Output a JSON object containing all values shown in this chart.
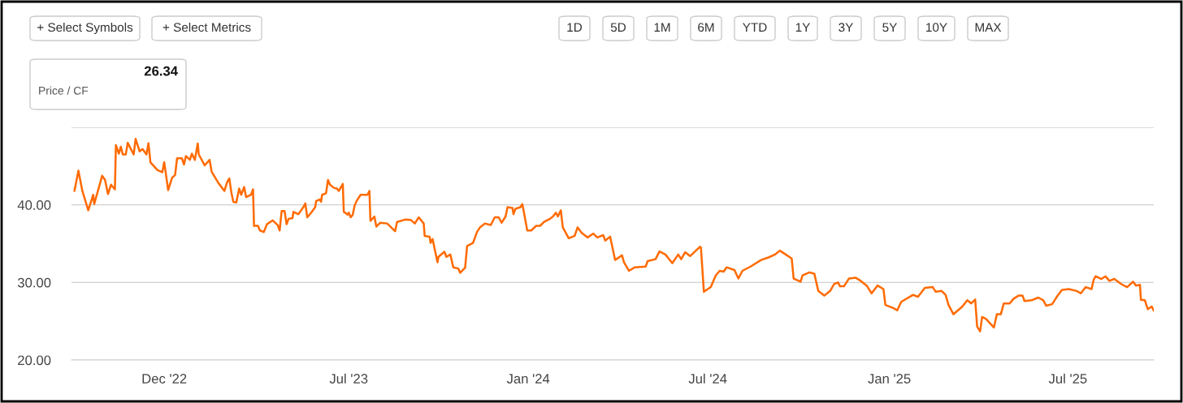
{
  "chart_data": {
    "type": "line",
    "annotations": [
      "+ Select Symbols",
      "+ Select Metrics",
      "1D",
      "5D",
      "1M",
      "6M",
      "YTD",
      "1Y",
      "3Y",
      "5Y",
      "10Y",
      "MAX",
      "26.34",
      "Price / CF"
    ],
    "xlim": [
      "2022-09-25",
      "2025-09-26"
    ],
    "xticks": [
      {
        "value": "2022-12-28",
        "label": "Dec '22"
      },
      {
        "value": "2023-07-03",
        "label": "Jul '23"
      },
      {
        "value": "2024-01-01",
        "label": "Jan '24"
      },
      {
        "value": "2024-07-01",
        "label": "Jul '24"
      },
      {
        "value": "2025-01-01",
        "label": "Jan '25"
      },
      {
        "value": "2025-07-01",
        "label": "Jul '25"
      }
    ],
    "ylim": [
      20,
      50
    ],
    "yticks": [
      {
        "value": 20,
        "label": "20.00"
      },
      {
        "value": 30,
        "label": "30.00"
      },
      {
        "value": 40,
        "label": "40.00"
      },
      {
        "value": 50,
        "label": null
      }
    ],
    "grid": "y",
    "legend": false,
    "marker": "none",
    "line_style": "solid",
    "series": [
      {
        "color": "#ff6a00",
        "x": [
          "2022-09-28",
          "2022-10-02",
          "2022-10-06",
          "2022-10-12",
          "2022-10-17",
          "2022-10-18",
          "2022-10-24",
          "2022-10-26",
          "2022-10-29",
          "2022-11-01",
          "2022-11-04",
          "2022-11-08",
          "2022-11-09",
          "2022-11-12",
          "2022-11-14",
          "2022-11-16",
          "2022-11-19",
          "2022-11-21",
          "2022-11-27",
          "2022-11-29",
          "2022-12-03",
          "2022-12-06",
          "2022-12-10",
          "2022-12-12",
          "2022-12-14",
          "2022-12-21",
          "2022-12-26",
          "2022-12-28",
          "2023-01-01",
          "2023-01-05",
          "2023-01-08",
          "2023-01-10",
          "2023-01-15",
          "2023-01-17",
          "2023-01-19",
          "2023-01-23",
          "2023-01-25",
          "2023-01-28",
          "2023-01-31",
          "2023-02-01",
          "2023-02-07",
          "2023-02-12",
          "2023-02-14",
          "2023-02-21",
          "2023-02-27",
          "2023-03-02",
          "2023-03-04",
          "2023-03-06",
          "2023-03-08",
          "2023-03-11",
          "2023-03-14",
          "2023-03-16",
          "2023-03-19",
          "2023-03-21",
          "2023-03-26",
          "2023-03-28",
          "2023-03-29",
          "2023-04-02",
          "2023-04-04",
          "2023-04-08",
          "2023-04-11",
          "2023-04-17",
          "2023-04-22",
          "2023-04-24",
          "2023-04-26",
          "2023-04-29",
          "2023-05-01",
          "2023-05-03",
          "2023-05-07",
          "2023-05-08",
          "2023-05-13",
          "2023-05-18",
          "2023-05-20",
          "2023-05-22",
          "2023-05-26",
          "2023-05-30",
          "2023-05-31",
          "2023-06-04",
          "2023-06-05",
          "2023-06-06",
          "2023-06-10",
          "2023-06-12",
          "2023-06-14",
          "2023-06-18",
          "2023-06-21",
          "2023-06-23",
          "2023-06-27",
          "2023-06-28",
          "2023-07-02",
          "2023-07-03",
          "2023-07-05",
          "2023-07-07",
          "2023-07-09",
          "2023-07-11",
          "2023-07-15",
          "2023-07-22",
          "2023-07-24",
          "2023-07-25",
          "2023-07-29",
          "2023-07-31",
          "2023-08-04",
          "2023-08-11",
          "2023-08-19",
          "2023-08-21",
          "2023-08-29",
          "2023-09-04",
          "2023-09-08",
          "2023-09-12",
          "2023-09-17",
          "2023-09-18",
          "2023-09-23",
          "2023-09-24",
          "2023-09-26",
          "2023-10-01",
          "2023-10-02",
          "2023-10-08",
          "2023-10-10",
          "2023-10-14",
          "2023-10-17",
          "2023-10-22",
          "2023-10-24",
          "2023-10-29",
          "2023-10-31",
          "2023-11-06",
          "2023-11-10",
          "2023-11-13",
          "2023-11-18",
          "2023-11-24",
          "2023-11-28",
          "2023-12-02",
          "2023-12-05",
          "2023-12-09",
          "2023-12-11",
          "2023-12-16",
          "2023-12-17",
          "2023-12-19",
          "2023-12-24",
          "2023-12-26",
          "2023-12-31",
          "2024-01-04",
          "2024-01-09",
          "2024-01-13",
          "2024-01-17",
          "2024-01-23",
          "2024-01-26",
          "2024-01-29",
          "2024-01-31",
          "2024-02-03",
          "2024-02-05",
          "2024-02-11",
          "2024-02-17",
          "2024-02-20",
          "2024-02-24",
          "2024-03-01",
          "2024-03-07",
          "2024-03-11",
          "2024-03-17",
          "2024-03-19",
          "2024-03-24",
          "2024-03-29",
          "2024-04-05",
          "2024-04-07",
          "2024-04-12",
          "2024-04-18",
          "2024-04-29",
          "2024-05-01",
          "2024-05-09",
          "2024-05-13",
          "2024-05-19",
          "2024-05-26",
          "2024-06-01",
          "2024-06-04",
          "2024-06-08",
          "2024-06-13",
          "2024-06-23",
          "2024-06-24",
          "2024-06-27",
          "2024-07-04",
          "2024-07-09",
          "2024-07-13",
          "2024-07-17",
          "2024-07-20",
          "2024-07-28",
          "2024-08-01",
          "2024-08-05",
          "2024-08-14",
          "2024-08-24",
          "2024-09-01",
          "2024-09-07",
          "2024-09-12",
          "2024-09-18",
          "2024-09-24",
          "2024-09-26",
          "2024-10-03",
          "2024-10-05",
          "2024-10-12",
          "2024-10-17",
          "2024-10-21",
          "2024-10-27",
          "2024-11-02",
          "2024-11-06",
          "2024-11-10",
          "2024-11-12",
          "2024-11-16",
          "2024-11-21",
          "2024-11-28",
          "2024-12-03",
          "2024-12-09",
          "2024-12-14",
          "2024-12-20",
          "2024-12-26",
          "2024-12-28",
          "2025-01-05",
          "2025-01-09",
          "2025-01-13",
          "2025-01-25",
          "2025-01-30",
          "2025-02-06",
          "2025-02-14",
          "2025-02-17",
          "2025-02-23",
          "2025-02-27",
          "2025-03-02",
          "2025-03-07",
          "2025-03-16",
          "2025-03-21",
          "2025-03-25",
          "2025-03-29",
          "2025-03-31",
          "2025-04-03",
          "2025-04-05",
          "2025-04-09",
          "2025-04-17",
          "2025-04-20",
          "2025-04-24",
          "2025-04-27",
          "2025-05-03",
          "2025-05-07",
          "2025-05-12",
          "2025-05-16",
          "2025-05-18",
          "2025-05-25",
          "2025-06-01",
          "2025-06-06",
          "2025-06-09",
          "2025-06-15",
          "2025-06-20",
          "2025-06-25",
          "2025-07-02",
          "2025-07-10",
          "2025-07-14",
          "2025-07-19",
          "2025-07-25",
          "2025-07-27",
          "2025-07-29",
          "2025-08-04",
          "2025-08-08",
          "2025-08-12",
          "2025-08-17",
          "2025-08-24",
          "2025-08-30",
          "2025-09-05",
          "2025-09-08",
          "2025-09-12",
          "2025-09-13",
          "2025-09-17",
          "2025-09-20",
          "2025-09-24",
          "2025-09-26"
        ],
        "values": [
          41.8,
          44.4,
          41.8,
          39.3,
          41.3,
          40.1,
          42.8,
          43.75,
          43.2,
          41.4,
          42.6,
          42.0,
          47.7,
          46.6,
          47.5,
          46.5,
          46.5,
          48.0,
          46.5,
          48.5,
          46.9,
          47.2,
          46.5,
          47.95,
          45.5,
          44.5,
          44.2,
          45.5,
          41.9,
          43.5,
          43.85,
          46.0,
          46.0,
          45.2,
          46.3,
          45.8,
          46.6,
          45.8,
          47.9,
          46.5,
          45.1,
          45.8,
          44.3,
          42.8,
          41.8,
          43.0,
          43.4,
          41.6,
          40.4,
          40.3,
          42.1,
          41.3,
          42.3,
          41.0,
          41.3,
          42.0,
          37.3,
          37.3,
          36.7,
          36.5,
          37.5,
          38.0,
          37.4,
          36.7,
          39.2,
          39.2,
          37.5,
          38.2,
          38.3,
          39.1,
          38.8,
          39.7,
          40.2,
          38.4,
          39.0,
          39.7,
          40.5,
          40.7,
          40.4,
          41.3,
          41.5,
          43.2,
          42.6,
          42.2,
          42.1,
          41.8,
          42.7,
          39.1,
          38.75,
          39.0,
          38.4,
          38.7,
          39.9,
          40.5,
          41.3,
          41.3,
          41.8,
          37.95,
          38.5,
          37.2,
          37.7,
          37.6,
          36.6,
          37.8,
          38.1,
          38.05,
          37.6,
          38.4,
          37.6,
          36.0,
          35.9,
          35.1,
          35.6,
          32.6,
          33.3,
          33.95,
          33.3,
          33.6,
          31.95,
          31.8,
          31.25,
          31.9,
          34.7,
          35.1,
          36.5,
          37.1,
          37.6,
          37.4,
          38.4,
          38.4,
          37.7,
          38.5,
          39.7,
          39.6,
          38.8,
          39.5,
          39.7,
          40.1,
          36.7,
          36.7,
          37.3,
          37.3,
          37.8,
          38.2,
          38.5,
          39.0,
          38.5,
          39.3,
          37.1,
          35.7,
          36.0,
          37.1,
          36.4,
          35.8,
          36.3,
          35.8,
          36.1,
          35.4,
          35.9,
          32.9,
          33.5,
          32.6,
          31.5,
          31.95,
          32.05,
          32.75,
          33.0,
          34.0,
          33.6,
          32.5,
          33.6,
          33.0,
          33.9,
          33.4,
          34.6,
          34.5,
          28.8,
          29.4,
          30.9,
          31.5,
          31.4,
          31.95,
          31.6,
          30.5,
          31.5,
          32.1,
          32.9,
          33.25,
          33.6,
          34.1,
          33.6,
          33.1,
          30.5,
          30.1,
          30.9,
          31.3,
          31.1,
          28.9,
          28.3,
          28.9,
          29.8,
          30.0,
          29.5,
          29.5,
          30.5,
          30.6,
          30.2,
          29.6,
          28.6,
          29.6,
          29.15,
          27.1,
          26.7,
          26.4,
          27.5,
          28.4,
          28.15,
          29.3,
          29.4,
          28.8,
          28.9,
          28.4,
          27.1,
          25.9,
          26.9,
          27.7,
          27.3,
          27.8,
          24.3,
          23.7,
          25.55,
          25.3,
          24.2,
          25.9,
          25.9,
          27.3,
          27.3,
          27.9,
          28.3,
          28.3,
          27.6,
          27.7,
          28.05,
          27.7,
          27.0,
          27.2,
          28.2,
          29.05,
          29.15,
          28.9,
          28.6,
          29.4,
          29.15,
          30.3,
          30.8,
          30.45,
          30.8,
          30.2,
          30.45,
          29.8,
          29.4,
          30.1,
          29.6,
          29.7,
          27.75,
          27.7,
          26.55,
          26.9,
          26.34
        ]
      }
    ]
  }
}
